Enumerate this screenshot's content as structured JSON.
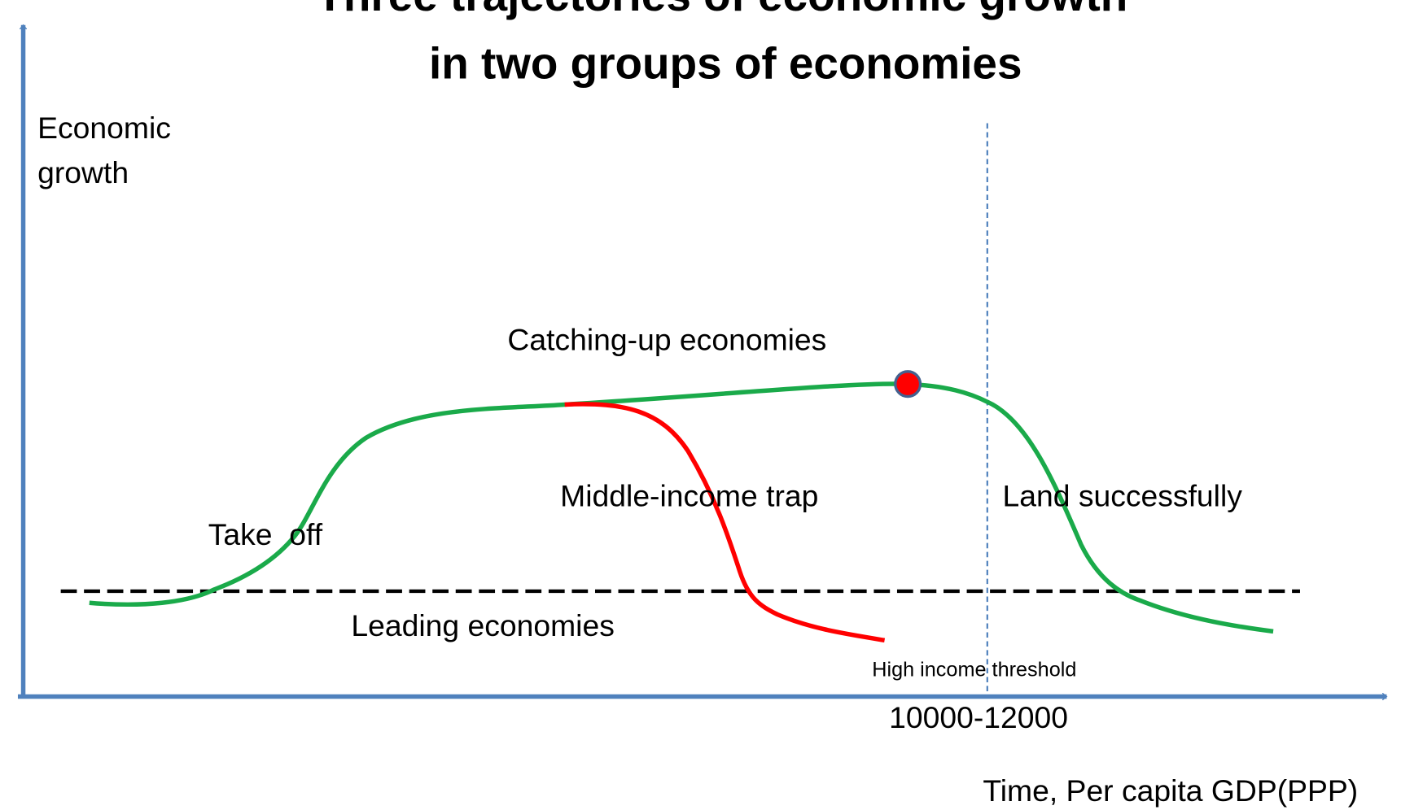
{
  "title": [
    "Three trajectories of economic growth",
    "in two groups of economies"
  ],
  "y_axis_label": [
    "Economic",
    "growth"
  ],
  "x_axis_label": "Time, Per capita GDP(PPP)",
  "curves": {
    "catching_up": "Catching-up economies",
    "trap": "Middle-income trap",
    "land": "Land successfully",
    "take_off": "Take  off",
    "leading": "Leading economies"
  },
  "threshold": {
    "label": "High income threshold",
    "value": "10000-12000"
  }
}
